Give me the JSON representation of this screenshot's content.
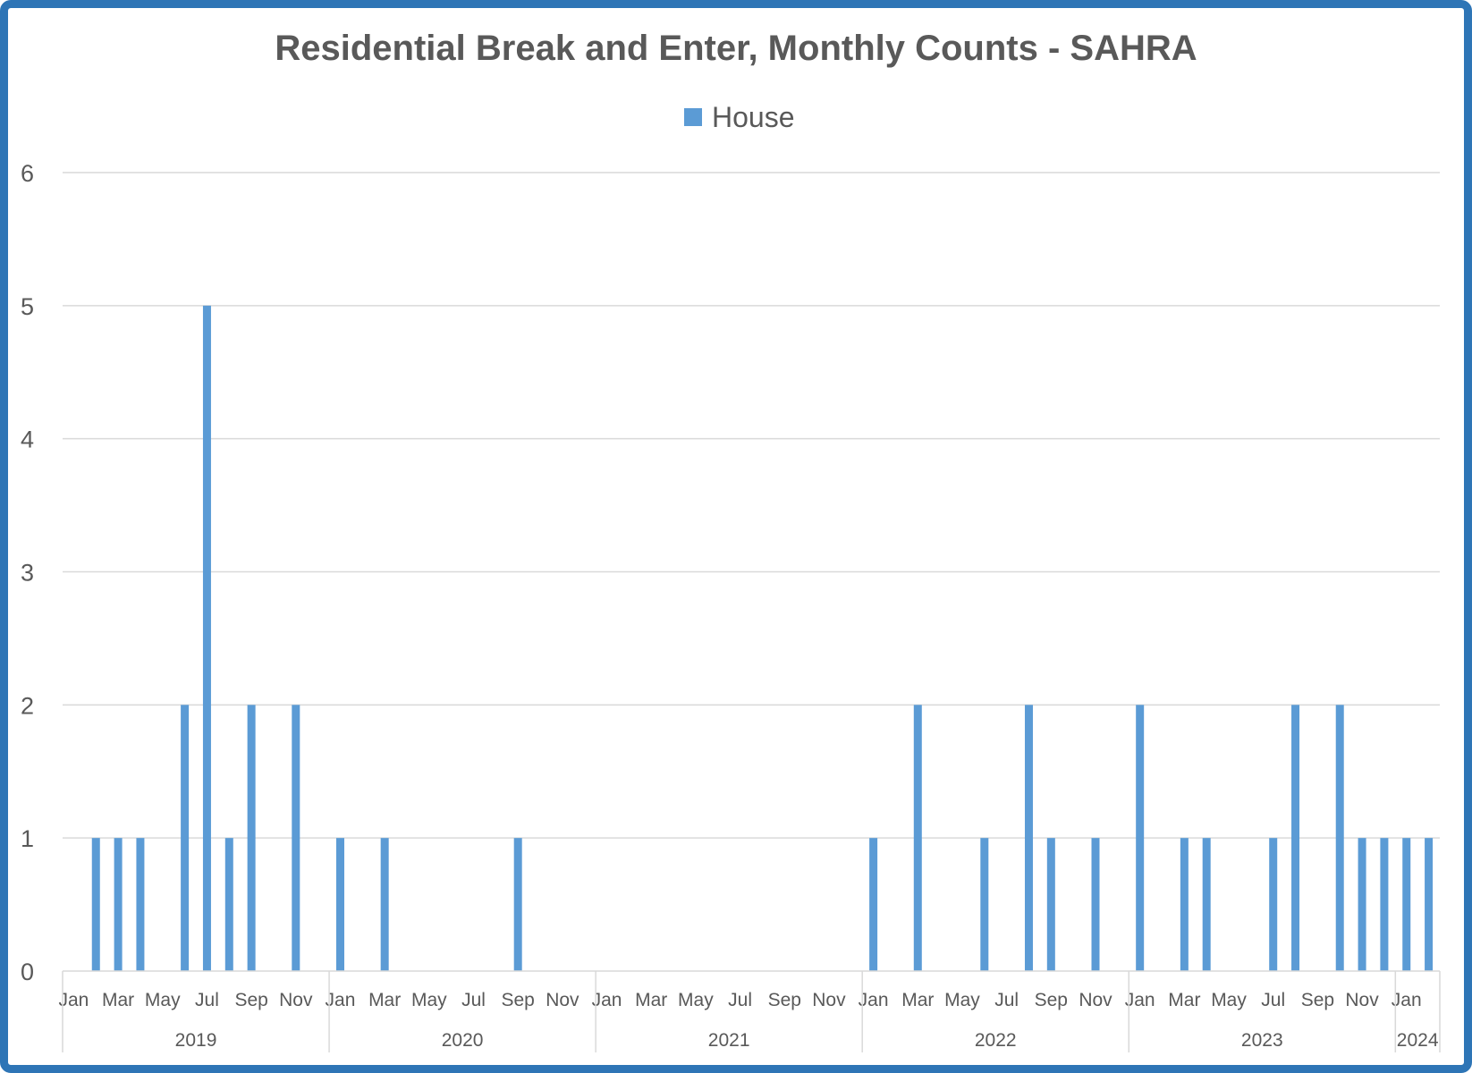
{
  "chart_data": {
    "type": "bar",
    "title": "Residential Break and Enter, Monthly Counts - SAHRA",
    "xlabel": "",
    "ylabel": "",
    "ylim": [
      0,
      6
    ],
    "yticks": [
      "0",
      "1",
      "2",
      "3",
      "4",
      "5",
      "6"
    ],
    "grid": true,
    "legend_position": "top-center",
    "colors": {
      "bar": "#5b9bd5",
      "frame": "#2e75b6",
      "text": "#595959",
      "grid": "#d9d9d9"
    },
    "years": [
      {
        "label": "2019",
        "months": 12
      },
      {
        "label": "2020",
        "months": 12
      },
      {
        "label": "2021",
        "months": 12
      },
      {
        "label": "2022",
        "months": 12
      },
      {
        "label": "2023",
        "months": 12
      },
      {
        "label": "2024",
        "months": 2
      }
    ],
    "month_labels": [
      "Jan",
      "",
      "Mar",
      "",
      "May",
      "",
      "Jul",
      "",
      "Sep",
      "",
      "Nov",
      "",
      "Jan",
      "",
      "Mar",
      "",
      "May",
      "",
      "Jul",
      "",
      "Sep",
      "",
      "Nov",
      "",
      "Jan",
      "",
      "Mar",
      "",
      "May",
      "",
      "Jul",
      "",
      "Sep",
      "",
      "Nov",
      "",
      "Jan",
      "",
      "Mar",
      "",
      "May",
      "",
      "Jul",
      "",
      "Sep",
      "",
      "Nov",
      "",
      "Jan",
      "",
      "Mar",
      "",
      "May",
      "",
      "Jul",
      "",
      "Sep",
      "",
      "Nov",
      "",
      "Jan",
      ""
    ],
    "series": [
      {
        "name": "House",
        "values": [
          0,
          1,
          1,
          1,
          0,
          2,
          5,
          1,
          2,
          0,
          2,
          0,
          1,
          0,
          1,
          0,
          0,
          0,
          0,
          0,
          1,
          0,
          0,
          0,
          0,
          0,
          0,
          0,
          0,
          0,
          0,
          0,
          0,
          0,
          0,
          0,
          1,
          0,
          2,
          0,
          0,
          1,
          0,
          2,
          1,
          0,
          1,
          0,
          2,
          0,
          1,
          1,
          0,
          0,
          1,
          2,
          0,
          2,
          1,
          1,
          1,
          1
        ]
      }
    ]
  }
}
